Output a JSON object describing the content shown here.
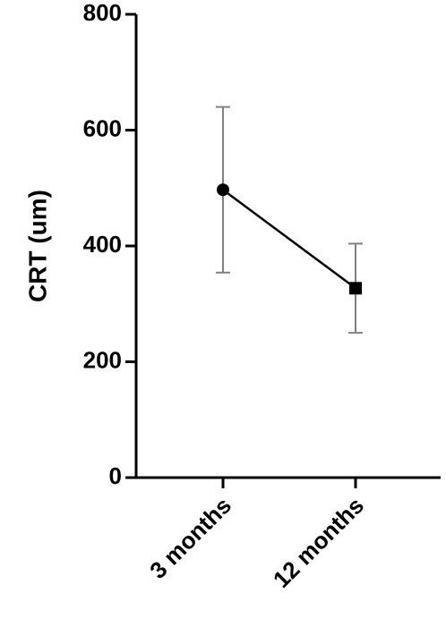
{
  "chart_data": {
    "type": "line",
    "y_label": "CRT (um)",
    "categories": [
      "3 months",
      "12 months"
    ],
    "values": [
      497,
      327
    ],
    "errors": [
      143,
      77
    ],
    "markers": [
      "circle",
      "square"
    ],
    "color": "#000000",
    "error_color": "#808080",
    "ylim": [
      0,
      800
    ],
    "yticks": [
      0,
      200,
      400,
      600,
      800
    ]
  }
}
